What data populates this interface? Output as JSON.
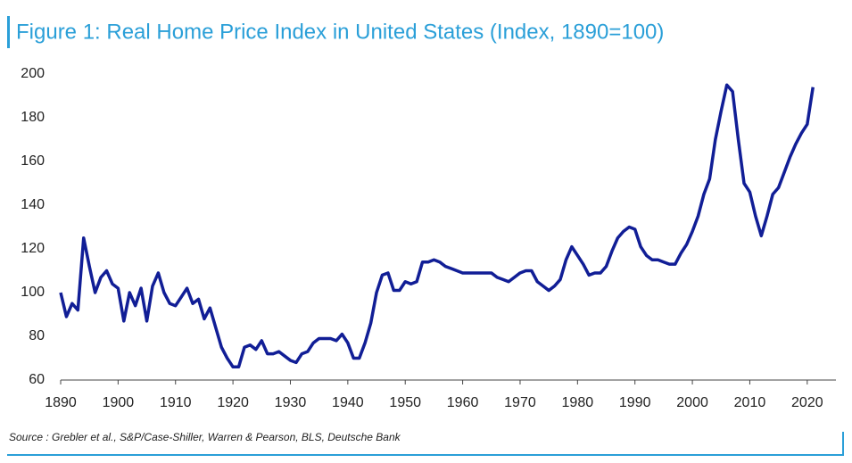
{
  "chart_data": {
    "type": "line",
    "title": "Figure 1: Real Home Price Index in United States (Index, 1890=100)",
    "source": "Source : Grebler et al., S&P/Case-Shiller, Warren & Pearson, BLS, Deutsche Bank",
    "x": [
      1890,
      1891,
      1892,
      1893,
      1894,
      1895,
      1896,
      1897,
      1898,
      1899,
      1900,
      1901,
      1902,
      1903,
      1904,
      1905,
      1906,
      1907,
      1908,
      1909,
      1910,
      1911,
      1912,
      1913,
      1914,
      1915,
      1916,
      1917,
      1918,
      1919,
      1920,
      1921,
      1922,
      1923,
      1924,
      1925,
      1926,
      1927,
      1928,
      1929,
      1930,
      1931,
      1932,
      1933,
      1934,
      1935,
      1936,
      1937,
      1938,
      1939,
      1940,
      1941,
      1942,
      1943,
      1944,
      1945,
      1946,
      1947,
      1948,
      1949,
      1950,
      1951,
      1952,
      1953,
      1954,
      1955,
      1956,
      1957,
      1958,
      1959,
      1960,
      1961,
      1962,
      1963,
      1964,
      1965,
      1966,
      1967,
      1968,
      1969,
      1970,
      1971,
      1972,
      1973,
      1974,
      1975,
      1976,
      1977,
      1978,
      1979,
      1980,
      1981,
      1982,
      1983,
      1984,
      1985,
      1986,
      1987,
      1988,
      1989,
      1990,
      1991,
      1992,
      1993,
      1994,
      1995,
      1996,
      1997,
      1998,
      1999,
      2000,
      2001,
      2002,
      2003,
      2004,
      2005,
      2006,
      2007,
      2008,
      2009,
      2010,
      2011,
      2012,
      2013,
      2014,
      2015,
      2016,
      2017,
      2018,
      2019,
      2020,
      2021
    ],
    "series": [
      {
        "name": "Real Home Price Index",
        "color": "#111e96",
        "values": [
          100,
          89,
          95,
          92,
          125,
          112,
          100,
          107,
          110,
          104,
          102,
          87,
          100,
          94,
          102,
          87,
          103,
          109,
          100,
          95,
          94,
          98,
          102,
          95,
          97,
          88,
          93,
          84,
          75,
          70,
          66,
          66,
          75,
          76,
          74,
          78,
          72,
          72,
          73,
          71,
          69,
          68,
          72,
          73,
          77,
          79,
          79,
          79,
          78,
          81,
          77,
          70,
          70,
          77,
          86,
          100,
          108,
          109,
          101,
          101,
          105,
          104,
          105,
          114,
          114,
          115,
          114,
          112,
          111,
          110,
          109,
          109,
          109,
          109,
          109,
          109,
          107,
          106,
          105,
          107,
          109,
          110,
          110,
          105,
          103,
          101,
          103,
          106,
          115,
          121,
          117,
          113,
          108,
          109,
          109,
          112,
          119,
          125,
          128,
          130,
          129,
          121,
          117,
          115,
          115,
          114,
          113,
          113,
          118,
          122,
          128,
          135,
          145,
          152,
          170,
          183,
          195,
          192,
          170,
          150,
          146,
          135,
          126,
          135,
          145,
          148,
          155,
          162,
          168,
          173,
          177,
          194
        ]
      }
    ],
    "xlim": [
      1890,
      2025
    ],
    "xticks": [
      1890,
      1900,
      1910,
      1920,
      1930,
      1940,
      1950,
      1960,
      1970,
      1980,
      1990,
      2000,
      2010,
      2020
    ],
    "ylim": [
      60,
      200
    ],
    "yticks": [
      60,
      80,
      100,
      120,
      140,
      160,
      180,
      200
    ]
  }
}
